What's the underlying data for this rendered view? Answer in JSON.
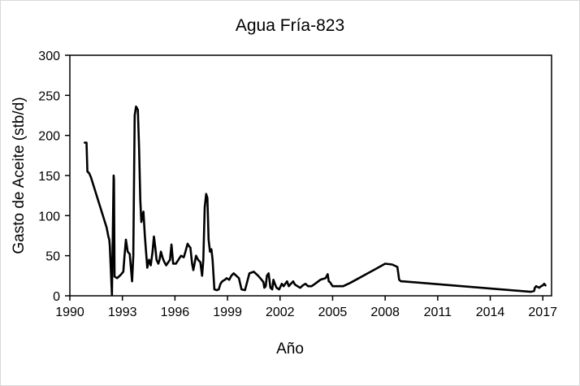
{
  "chart_data": {
    "type": "line",
    "title": "Agua Fría-823",
    "xlabel": "Año",
    "ylabel": "Gasto de Aceite (stb/d)",
    "xlim": [
      1990,
      2017.5
    ],
    "ylim": [
      0,
      300
    ],
    "x_ticks": [
      1990,
      1993,
      1996,
      1999,
      2002,
      2005,
      2008,
      2011,
      2014,
      2017
    ],
    "x_tick_labels": [
      "1990",
      "1993",
      "1996",
      "1999",
      "2002",
      "2005",
      "2008",
      "2011",
      "2014",
      "2017"
    ],
    "y_ticks": [
      0,
      50,
      100,
      150,
      200,
      250,
      300
    ],
    "y_tick_labels": [
      "0",
      "50",
      "100",
      "150",
      "200",
      "250",
      "300"
    ],
    "grid": false,
    "legend": "none",
    "line_color": "#000000",
    "series": [
      {
        "x": [
          1990.85,
          1990.95,
          1991.0,
          1991.1,
          1991.2,
          1992.1,
          1992.2,
          1992.25,
          1992.28,
          1992.4,
          1992.5,
          1992.52,
          1992.55,
          1992.7,
          1992.9,
          1993.05,
          1993.12,
          1993.2,
          1993.3,
          1993.42,
          1993.55,
          1993.62,
          1993.7,
          1993.78,
          1993.88,
          1993.95,
          1994.02,
          1994.08,
          1994.15,
          1994.2,
          1994.28,
          1994.42,
          1994.52,
          1994.62,
          1994.72,
          1994.8,
          1994.88,
          1994.95,
          1995.05,
          1995.12,
          1995.2,
          1995.3,
          1995.4,
          1995.5,
          1995.62,
          1995.72,
          1995.8,
          1995.9,
          1996.05,
          1996.2,
          1996.35,
          1996.5,
          1996.6,
          1996.72,
          1996.8,
          1996.88,
          1996.98,
          1997.05,
          1997.12,
          1997.2,
          1997.32,
          1997.45,
          1997.55,
          1997.62,
          1997.7,
          1997.78,
          1997.85,
          1997.92,
          1998.0,
          1998.08,
          1998.15,
          1998.25,
          1998.4,
          1998.5,
          1998.6,
          1998.7,
          1998.85,
          1998.95,
          1999.1,
          1999.22,
          1999.35,
          1999.5,
          1999.65,
          1999.8,
          2000.0,
          2000.25,
          2000.5,
          2000.75,
          2000.95,
          2001.05,
          2001.1,
          2001.18,
          2001.25,
          2001.35,
          2001.45,
          2001.55,
          2001.62,
          2001.7,
          2001.8,
          2001.95,
          2002.1,
          2002.2,
          2002.3,
          2002.4,
          2002.5,
          2002.62,
          2002.75,
          2002.85,
          2003.0,
          2003.15,
          2003.3,
          2003.45,
          2003.6,
          2003.8,
          2004.0,
          2004.3,
          2004.6,
          2004.72,
          2004.78,
          2004.85,
          2005.0,
          2005.2,
          2005.6,
          2006.0,
          2006.5,
          2007.0,
          2007.5,
          2008.0,
          2008.4,
          2008.7,
          2008.8,
          2008.9,
          2009.0,
          2016.3,
          2016.5,
          2016.55,
          2016.62,
          2016.7,
          2016.8,
          2016.9,
          2017.0,
          2017.08,
          2017.15
        ],
        "y": [
          191,
          191,
          155,
          153,
          148,
          85,
          74,
          70,
          62,
          1,
          150,
          145,
          24,
          22,
          26,
          30,
          50,
          70,
          55,
          52,
          18,
          50,
          225,
          236,
          232,
          185,
          120,
          92,
          100,
          105,
          75,
          35,
          45,
          38,
          55,
          74,
          60,
          45,
          40,
          45,
          55,
          47,
          42,
          38,
          42,
          45,
          64,
          40,
          40,
          45,
          50,
          48,
          55,
          65,
          62,
          60,
          40,
          32,
          40,
          50,
          45,
          42,
          25,
          45,
          110,
          127,
          122,
          70,
          55,
          58,
          45,
          8,
          7,
          8,
          15,
          18,
          20,
          22,
          20,
          25,
          28,
          25,
          22,
          8,
          7,
          28,
          30,
          25,
          20,
          17,
          10,
          12,
          25,
          28,
          10,
          8,
          20,
          15,
          10,
          8,
          15,
          12,
          15,
          18,
          12,
          15,
          18,
          14,
          12,
          10,
          13,
          15,
          12,
          12,
          15,
          20,
          22,
          27,
          18,
          17,
          12,
          12,
          12,
          16,
          22,
          28,
          34,
          40,
          39,
          36,
          20,
          18,
          18,
          5,
          6,
          10,
          12,
          11,
          10,
          12,
          13,
          15,
          13
        ]
      }
    ]
  }
}
